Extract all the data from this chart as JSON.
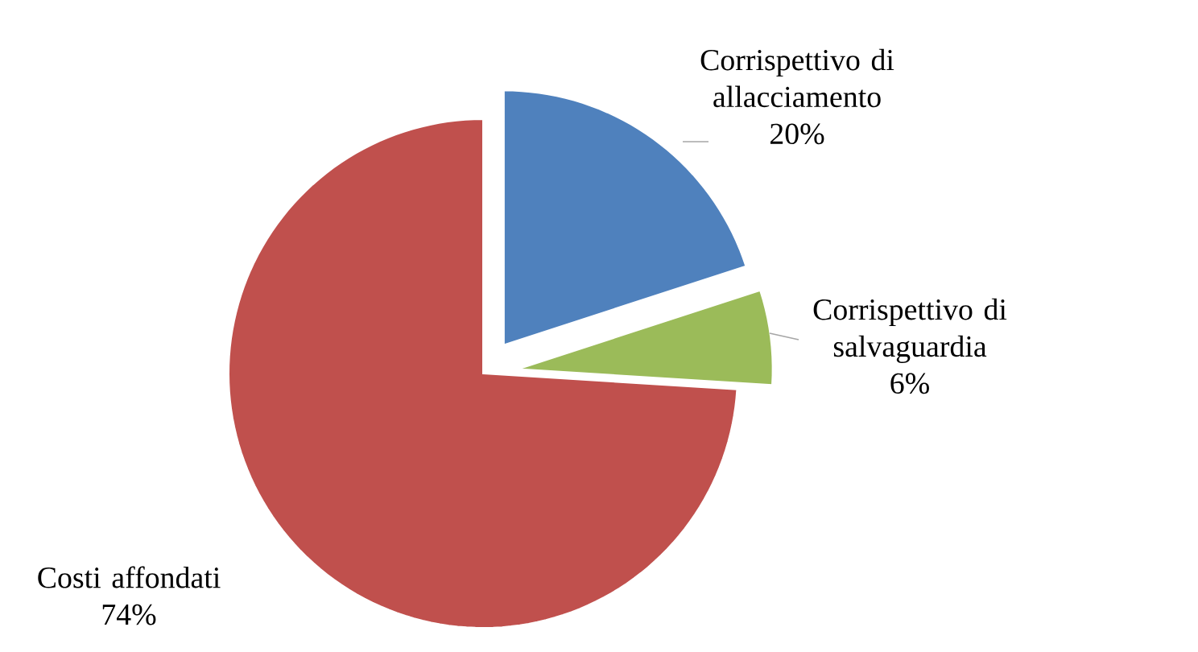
{
  "chart_data": {
    "type": "pie",
    "categories": [
      "Corrispettivo di allacciamento",
      "Corrispettivo di salvaguardia",
      "Costi affondati"
    ],
    "values": [
      20,
      6,
      74
    ],
    "value_labels": [
      "20%",
      "6%",
      "74%"
    ],
    "colors": [
      "#4f81bd",
      "#9bbb59",
      "#c0504d"
    ]
  }
}
